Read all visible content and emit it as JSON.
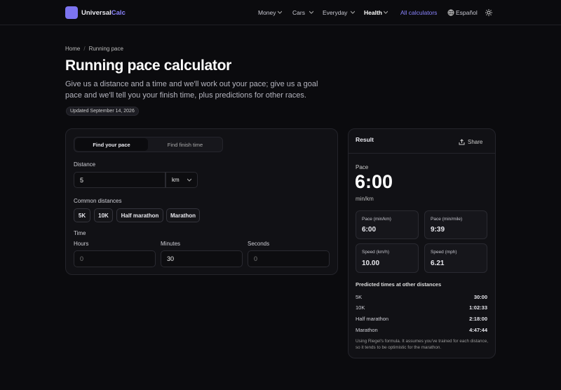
{
  "header": {
    "brand": "Universal",
    "brand_accent": "Calc",
    "nav": [
      "Money",
      "Cars",
      "Everyday",
      "Health"
    ],
    "all_calculators": "All calculators",
    "language": "Español"
  },
  "breadcrumb": [
    "Home",
    "Running pace"
  ],
  "page": {
    "title": "Running pace calculator",
    "intro": "Give us a distance and a time and we'll work out your pace; give us a goal pace and we'll tell you your finish time, plus predictions for other races.",
    "updated": "Updated September 14, 2026"
  },
  "form": {
    "tabs": [
      "Find your pace",
      "Find finish time"
    ],
    "distance_label": "Distance",
    "distance_value": "5",
    "unit": "km",
    "common_label": "Common distances",
    "common": [
      "5K",
      "10K",
      "Half marathon",
      "Marathon"
    ],
    "time_label": "Time",
    "fields": [
      {
        "label": "Hours",
        "value": "0"
      },
      {
        "label": "Minutes",
        "value": "30"
      },
      {
        "label": "Seconds",
        "value": "0"
      }
    ]
  },
  "result": {
    "title": "Result",
    "share": "Share",
    "pace_label": "Pace",
    "pace": "6:00",
    "pace_unit": "min/km",
    "stats": [
      {
        "label": "Pace (min/km)",
        "value": "6:00"
      },
      {
        "label": "Pace (min/mile)",
        "value": "9:39"
      },
      {
        "label": "Speed (km/h)",
        "value": "10.00"
      },
      {
        "label": "Speed (mph)",
        "value": "6.21"
      }
    ],
    "predicted_title": "Predicted times at other distances",
    "predictions": [
      {
        "race": "5K",
        "time": "30:00"
      },
      {
        "race": "10K",
        "time": "1:02:33"
      },
      {
        "race": "Half marathon",
        "time": "2:18:00"
      },
      {
        "race": "Marathon",
        "time": "4:47:44"
      }
    ],
    "note": "Using Riegel's formula. It assumes you've trained for each distance, so it tends to be optimistic for the marathon."
  }
}
